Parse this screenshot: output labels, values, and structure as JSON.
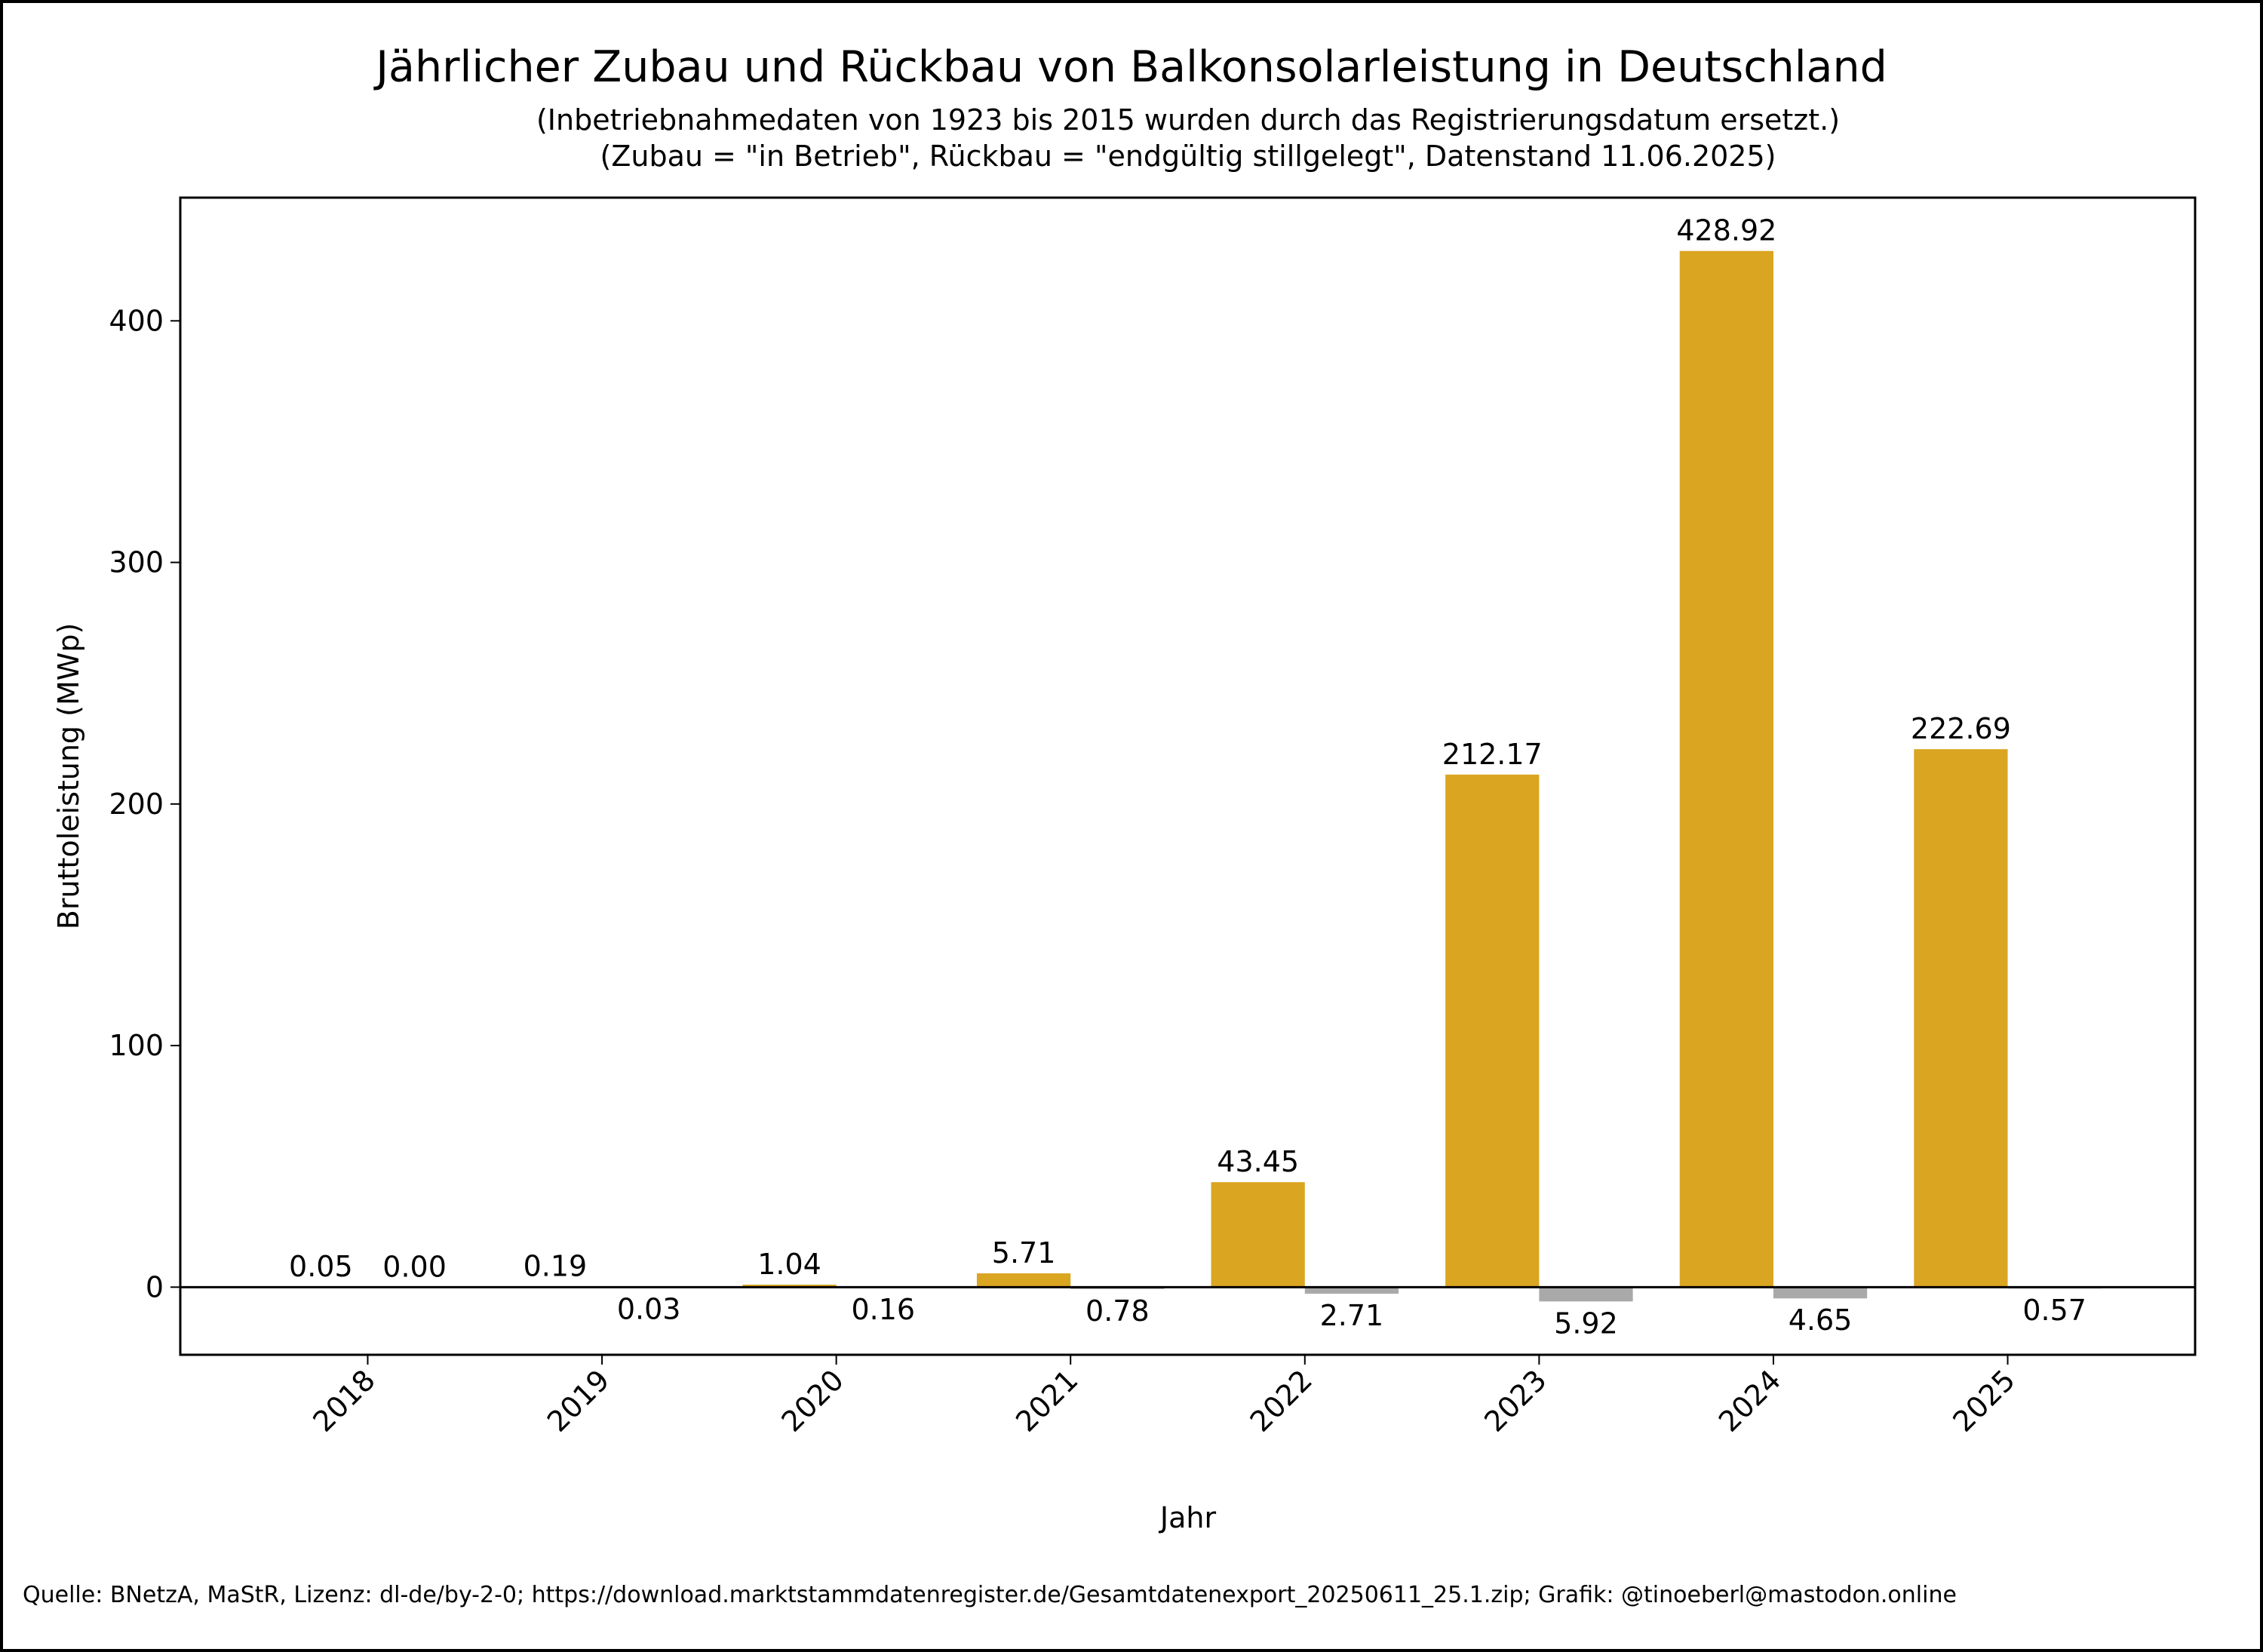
{
  "chart_data": {
    "type": "bar",
    "title": "Jährlicher Zubau und Rückbau von Balkonsolarleistung in Deutschland",
    "subtitle_lines": [
      "(Inbetriebnahmedaten von 1923 bis 2015 wurden durch das Registrierungsdatum ersetzt.)",
      "(Zubau = \"in Betrieb\", Rückbau = \"endgültig stillgelegt\", Datenstand 11.06.2025)"
    ],
    "xlabel": "Jahr",
    "ylabel": "Bruttoleistung (MWp)",
    "categories": [
      "2018",
      "2019",
      "2020",
      "2021",
      "2022",
      "2023",
      "2024",
      "2025"
    ],
    "series": [
      {
        "name": "Zubau",
        "color": "#DAA520",
        "values": [
          0.05,
          0.19,
          1.04,
          5.71,
          43.45,
          212.17,
          428.92,
          222.69
        ],
        "labels": [
          "0.05",
          "0.19",
          "1.04",
          "5.71",
          "43.45",
          "212.17",
          "428.92",
          "222.69"
        ]
      },
      {
        "name": "Rückbau",
        "color": "#A9A9A9",
        "values": [
          -0.0,
          -0.03,
          -0.16,
          -0.78,
          -2.71,
          -5.92,
          -4.65,
          -0.57
        ],
        "labels": [
          "0.00",
          "0.03",
          "0.16",
          "0.78",
          "2.71",
          "5.92",
          "4.65",
          "0.57"
        ]
      }
    ],
    "yticks": [
      0,
      100,
      200,
      300,
      400
    ],
    "ytick_labels": [
      "0",
      "100",
      "200",
      "300",
      "400"
    ],
    "ylim": [
      -28,
      451
    ],
    "xlim": [
      2017.2,
      2025.8
    ],
    "grid": false,
    "legend": "none"
  },
  "footer": "Quelle: BNetzA, MaStR, Lizenz: dl-de/by-2-0; https://download.marktstammdatenregister.de/Gesamtdatenexport_20250611_25.1.zip; Grafik: @tinoeberl@mastodon.online"
}
